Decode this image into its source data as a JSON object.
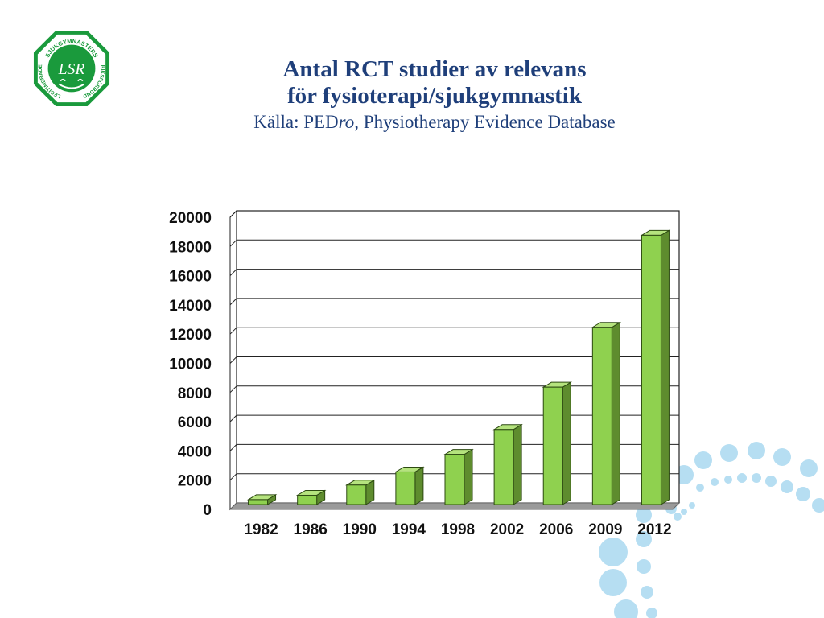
{
  "header": {
    "title_line1": "Antal RCT studier av relevans",
    "title_line2": "för fysioterapi/sjukgymnastik",
    "source_prefix": "Källa: PED",
    "source_italic": "ro,",
    "source_suffix": " Physiotherapy Evidence Database"
  },
  "logo": {
    "text_top": "SJUKGYMNASTERS",
    "text_left": "LEGITIMERADE",
    "text_right": "RIKSFÖRBUND",
    "monogram": "LSR",
    "color": "#1a9a3c"
  },
  "colors": {
    "bar_front": "#8fd14f",
    "bar_side": "#5e8c2e",
    "bar_top": "#b5e37e",
    "title": "#1f3f7a",
    "floor": "#9a9a9a",
    "dots": "#a9d8f0"
  },
  "chart_data": {
    "type": "bar",
    "categories": [
      "1982",
      "1986",
      "1990",
      "1994",
      "1998",
      "2002",
      "2006",
      "2009",
      "2012"
    ],
    "values": [
      500,
      800,
      1500,
      2400,
      3600,
      5300,
      8200,
      12300,
      18600
    ],
    "yticks": [
      "0",
      "2000",
      "4000",
      "6000",
      "8000",
      "10000",
      "12000",
      "14000",
      "16000",
      "18000",
      "20000"
    ],
    "ylim": [
      0,
      20000
    ],
    "grid": true,
    "legend": "none"
  }
}
